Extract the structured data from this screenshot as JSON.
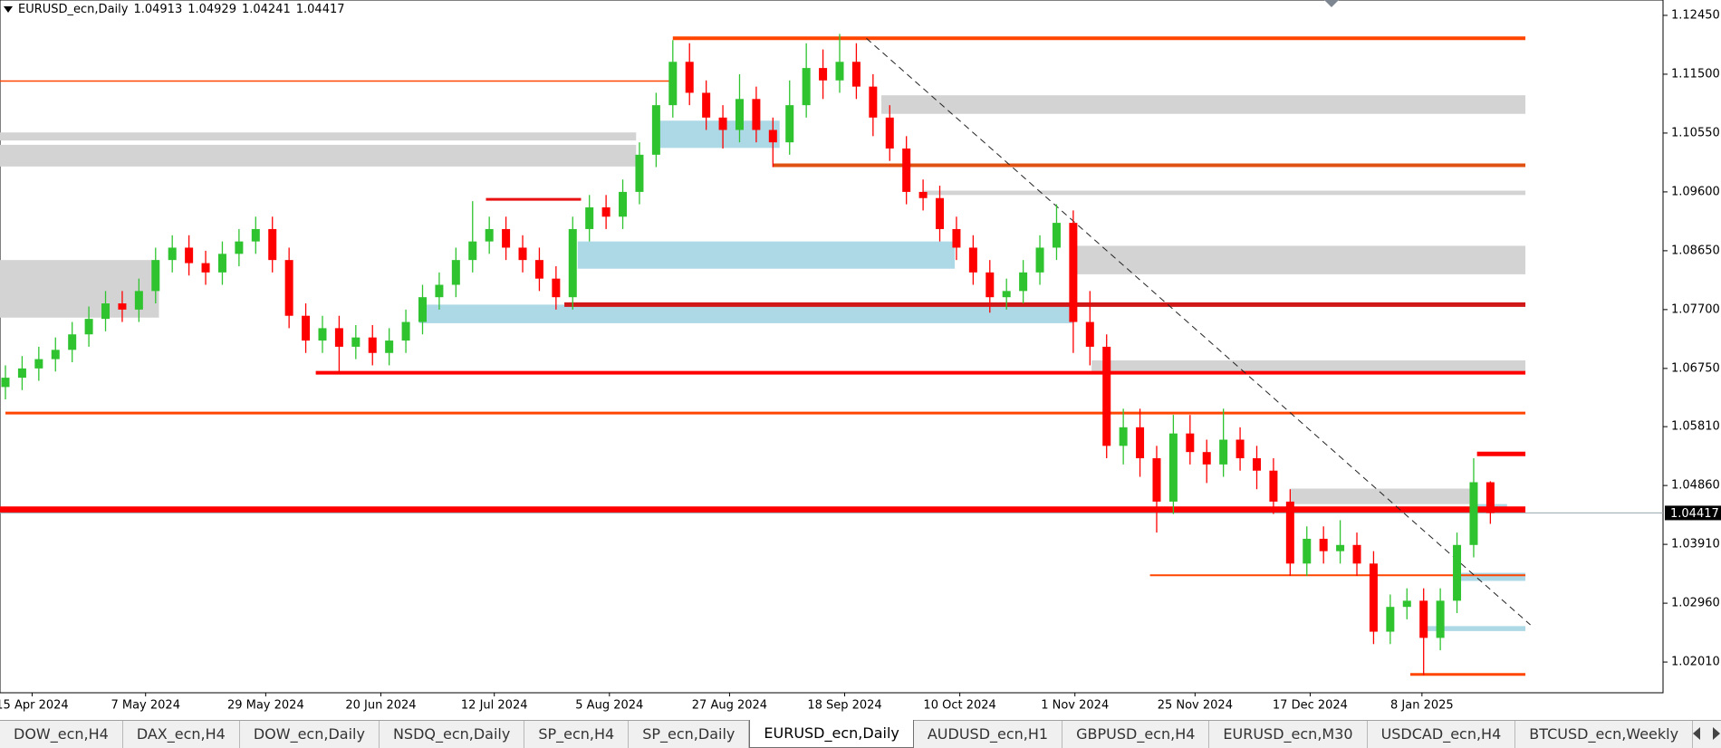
{
  "header": {
    "symbol": "EURUSD_ecn,Daily"
  },
  "chart_data": {
    "type": "candlestick",
    "open": [
      1.0645,
      1.066,
      1.0675,
      1.069,
      1.0705,
      1.073,
      1.0755,
      1.078,
      1.077,
      1.08,
      1.085,
      1.087,
      1.0845,
      1.083,
      1.086,
      1.088,
      1.09,
      1.085,
      1.076,
      1.072,
      1.074,
      1.071,
      1.0725,
      1.07,
      1.072,
      1.075,
      1.079,
      1.081,
      1.085,
      1.088,
      1.09,
      1.087,
      1.085,
      1.082,
      1.079,
      1.09,
      1.0935,
      1.092,
      1.096,
      1.102,
      1.11,
      1.117,
      1.112,
      1.108,
      1.106,
      1.111,
      1.106,
      1.104,
      1.11,
      1.116,
      1.114,
      1.117,
      1.113,
      1.108,
      1.103,
      1.096,
      1.095,
      1.09,
      1.087,
      1.083,
      1.079,
      1.08,
      1.083,
      1.087,
      1.091,
      1.075,
      1.071,
      1.055,
      1.058,
      1.053,
      1.046,
      1.057,
      1.054,
      1.052,
      1.056,
      1.053,
      1.051,
      1.046,
      1.036,
      1.04,
      1.038,
      1.039,
      1.036,
      1.025,
      1.029,
      1.03,
      1.024,
      1.03,
      1.039,
      1.04913
    ],
    "high": [
      1.068,
      1.0695,
      1.071,
      1.0725,
      1.075,
      1.0775,
      1.08,
      1.08,
      1.082,
      1.087,
      1.089,
      1.089,
      1.0865,
      1.088,
      1.09,
      1.092,
      1.092,
      1.087,
      1.078,
      1.076,
      1.076,
      1.0745,
      1.0745,
      1.074,
      1.077,
      1.081,
      1.083,
      1.087,
      1.0945,
      1.092,
      1.092,
      1.089,
      1.087,
      1.084,
      1.092,
      1.0955,
      1.0955,
      1.098,
      1.104,
      1.112,
      1.1205,
      1.12,
      1.114,
      1.11,
      1.115,
      1.113,
      1.108,
      1.114,
      1.12,
      1.119,
      1.1215,
      1.12,
      1.115,
      1.11,
      1.105,
      1.098,
      1.097,
      1.092,
      1.089,
      1.085,
      1.082,
      1.085,
      1.089,
      1.094,
      1.093,
      1.08,
      1.073,
      1.061,
      1.061,
      1.055,
      1.06,
      1.06,
      1.056,
      1.061,
      1.058,
      1.055,
      1.053,
      1.048,
      1.042,
      1.042,
      1.043,
      1.041,
      1.038,
      1.031,
      1.032,
      1.032,
      1.032,
      1.041,
      1.053,
      1.04929
    ],
    "low": [
      1.0625,
      1.064,
      1.0655,
      1.067,
      1.0685,
      1.071,
      1.0735,
      1.075,
      1.075,
      1.078,
      1.083,
      1.0825,
      1.081,
      1.081,
      1.084,
      1.086,
      1.083,
      1.074,
      1.07,
      1.07,
      1.067,
      1.069,
      1.068,
      1.068,
      1.07,
      1.073,
      1.077,
      1.079,
      1.083,
      1.086,
      1.085,
      1.083,
      1.08,
      1.077,
      1.077,
      1.088,
      1.09,
      1.09,
      1.094,
      1.1,
      1.108,
      1.11,
      1.106,
      1.103,
      1.104,
      1.104,
      1.1,
      1.102,
      1.108,
      1.111,
      1.112,
      1.111,
      1.105,
      1.101,
      1.094,
      1.093,
      1.088,
      1.085,
      1.081,
      1.0765,
      1.077,
      1.078,
      1.081,
      1.085,
      1.07,
      1.068,
      1.053,
      1.052,
      1.05,
      1.041,
      1.044,
      1.052,
      1.049,
      1.05,
      1.051,
      1.048,
      1.044,
      1.034,
      1.034,
      1.036,
      1.036,
      1.034,
      1.023,
      1.023,
      1.027,
      1.018,
      1.022,
      1.028,
      1.037,
      1.04241
    ],
    "close": [
      1.066,
      1.0675,
      1.069,
      1.0705,
      1.073,
      1.0755,
      1.078,
      1.077,
      1.08,
      1.085,
      1.087,
      1.0845,
      1.083,
      1.086,
      1.088,
      1.09,
      1.085,
      1.076,
      1.072,
      1.074,
      1.071,
      1.0725,
      1.07,
      1.072,
      1.075,
      1.079,
      1.081,
      1.085,
      1.088,
      1.09,
      1.087,
      1.085,
      1.082,
      1.079,
      1.09,
      1.0935,
      1.092,
      1.096,
      1.102,
      1.11,
      1.117,
      1.112,
      1.108,
      1.106,
      1.111,
      1.106,
      1.104,
      1.11,
      1.116,
      1.114,
      1.117,
      1.113,
      1.108,
      1.103,
      1.096,
      1.095,
      1.09,
      1.087,
      1.083,
      1.079,
      1.08,
      1.083,
      1.087,
      1.091,
      1.075,
      1.071,
      1.055,
      1.058,
      1.053,
      1.046,
      1.057,
      1.054,
      1.052,
      1.056,
      1.053,
      1.051,
      1.046,
      1.036,
      1.04,
      1.038,
      1.039,
      1.036,
      1.025,
      1.029,
      1.03,
      1.024,
      1.03,
      1.039,
      1.04913,
      1.04417
    ],
    "up_color": "#2fc42f",
    "down_color": "#ff0000",
    "ylim": [
      1.01514,
      1.12698
    ],
    "yticks": [
      {
        "value": 1.1245,
        "label": "1.12450"
      },
      {
        "value": 1.115,
        "label": "1.11500"
      },
      {
        "value": 1.1055,
        "label": "1.10550"
      },
      {
        "value": 1.096,
        "label": "1.09600"
      },
      {
        "value": 1.0865,
        "label": "1.08650"
      },
      {
        "value": 1.077,
        "label": "1.07700"
      },
      {
        "value": 1.0675,
        "label": "1.06750"
      },
      {
        "value": 1.0581,
        "label": "1.05810"
      },
      {
        "value": 1.0486,
        "label": "1.04860"
      },
      {
        "value": 1.0391,
        "label": "1.03910"
      },
      {
        "value": 1.0296,
        "label": "1.02960"
      },
      {
        "value": 1.0201,
        "label": "1.02010"
      }
    ],
    "xticks": [
      {
        "value": 1.6,
        "label": "15 Apr 2024"
      },
      {
        "value": 8.4,
        "label": "7 May 2024"
      },
      {
        "value": 15.6,
        "label": "29 May 2024"
      },
      {
        "value": 22.5,
        "label": "20 Jun 2024"
      },
      {
        "value": 29.3,
        "label": "12 Jul 2024"
      },
      {
        "value": 36.2,
        "label": "5 Aug 2024"
      },
      {
        "value": 43.4,
        "label": "27 Aug 2024"
      },
      {
        "value": 50.3,
        "label": "18 Sep 2024"
      },
      {
        "value": 57.2,
        "label": "10 Oct 2024"
      },
      {
        "value": 64.1,
        "label": "1 Nov 2024"
      },
      {
        "value": 71.3,
        "label": "25 Nov 2024"
      },
      {
        "value": 78.2,
        "label": "17 Dec 2024"
      },
      {
        "value": 84.9,
        "label": "8 Jan 2025"
      }
    ],
    "zones": [
      {
        "top": 1.1056,
        "bottom": 1.1043,
        "from": -1,
        "to": 37.8,
        "color": "#d3d3d3"
      },
      {
        "top": 1.1036,
        "bottom": 1.1001,
        "from": -1,
        "to": 37.8,
        "color": "#d3d3d3"
      },
      {
        "top": 1.085,
        "bottom": 1.0757,
        "from": -1,
        "to": 9.2,
        "color": "#d3d3d3"
      },
      {
        "top": 1.1116,
        "bottom": 1.1086,
        "from": 52.5,
        "to": 91.1,
        "color": "#d3d3d3"
      },
      {
        "top": 1.0873,
        "bottom": 1.0827,
        "from": 64.0,
        "to": 91.1,
        "color": "#d3d3d3"
      },
      {
        "top": 1.0688,
        "bottom": 1.0668,
        "from": 65.1,
        "to": 91.1,
        "color": "#d3d3d3"
      },
      {
        "top": 1.0481,
        "bottom": 1.0456,
        "from": 77.0,
        "to": 88.0,
        "color": "#d3d3d3"
      },
      {
        "top": 1.0962,
        "bottom": 1.0955,
        "from": 55.0,
        "to": 91.1,
        "color": "#d3d3d3"
      },
      {
        "top": 1.088,
        "bottom": 1.0836,
        "from": 34.3,
        "to": 56.9,
        "color": "#add8e6"
      },
      {
        "top": 1.0778,
        "bottom": 1.0748,
        "from": 24.8,
        "to": 64.0,
        "color": "#add8e6"
      },
      {
        "top": 1.1075,
        "bottom": 1.1031,
        "from": 39.0,
        "to": 46.4,
        "color": "#add8e6"
      },
      {
        "top": 1.0345,
        "bottom": 1.0332,
        "from": 86.8,
        "to": 91.1,
        "color": "#add8e6"
      },
      {
        "top": 1.0259,
        "bottom": 1.0251,
        "from": 85.0,
        "to": 91.1,
        "color": "#add8e6"
      },
      {
        "top": 1.0456,
        "bottom": 1.0442,
        "from": 88.0,
        "to": 90.0,
        "color": "#add8e6"
      }
    ],
    "levels": [
      {
        "price": 1.1139,
        "from": -1,
        "to": 40.0,
        "color": "#ff4500",
        "width": 1.5
      },
      {
        "price": 1.1208,
        "from": 40.0,
        "to": 91.1,
        "color": "#ff4500",
        "width": 4
      },
      {
        "price": 1.1003,
        "from": 46.0,
        "to": 91.1,
        "color": "#e05010",
        "width": 4
      },
      {
        "price": 1.0948,
        "from": 28.8,
        "to": 34.5,
        "color": "#e81010",
        "width": 3
      },
      {
        "price": 1.0778,
        "from": 33.5,
        "to": 91.1,
        "color": "#d01818",
        "width": 5
      },
      {
        "price": 1.0668,
        "from": 18.6,
        "to": 91.1,
        "color": "#ff0000",
        "width": 4
      },
      {
        "price": 1.0603,
        "from": 0.0,
        "to": 91.1,
        "color": "#ff4500",
        "width": 3
      },
      {
        "price": 1.0447,
        "from": -1,
        "to": 91.1,
        "color": "#ff0000",
        "width": 7
      },
      {
        "price": 1.0341,
        "from": 68.6,
        "to": 91.1,
        "color": "#ff4500",
        "width": 2
      },
      {
        "price": 1.0537,
        "from": 88.2,
        "to": 91.1,
        "color": "#ff0000",
        "width": 5
      },
      {
        "price": 1.0181,
        "from": 84.2,
        "to": 91.1,
        "color": "#ff4500",
        "width": 3
      }
    ],
    "trendline": {
      "x": [
        51.6,
        91.4
      ],
      "y": [
        1.1208,
        1.0261
      ]
    }
  },
  "tabs": [
    "DOW_ecn,H4",
    "DAX_ecn,H4",
    "DOW_ecn,Daily",
    "NSDQ_ecn,Daily",
    "SP_ecn,H4",
    "SP_ecn,Daily",
    "EURUSD_ecn,Daily",
    "AUDUSD_ecn,H1",
    "GBPUSD_ecn,H4",
    "EURUSD_ecn,M30",
    "USDCAD_ecn,H4",
    "BTCUSD_ecn,Weekly"
  ],
  "active_tab": 6
}
